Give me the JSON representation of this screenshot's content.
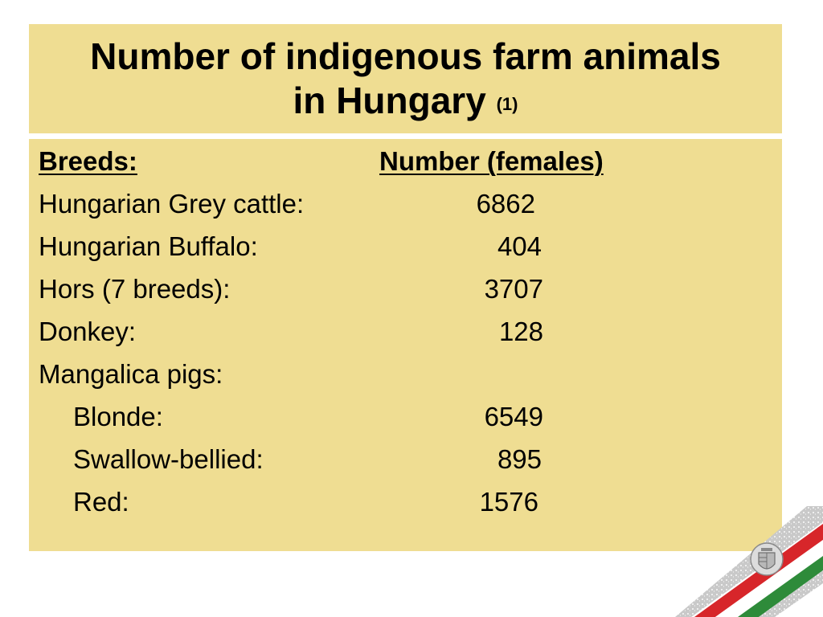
{
  "title": {
    "line1": "Number of indigenous farm animals",
    "line2": "in Hungary",
    "note": "(1)"
  },
  "table": {
    "header": {
      "breeds": "Breeds:",
      "number": "Number (females)"
    },
    "rows": [
      {
        "label": "Hungarian Grey cattle:",
        "value": "6862"
      },
      {
        "label": "Hungarian Buffalo:",
        "value": "404"
      },
      {
        "label": "Hors (7 breeds):",
        "value": "3707"
      },
      {
        "label": "Donkey:",
        "value": "128"
      },
      {
        "label": "Mangalica pigs:",
        "value": ""
      },
      {
        "label": "Blonde:",
        "value": "6549"
      },
      {
        "label": "Swallow-bellied:",
        "value": "895"
      },
      {
        "label": "Red:",
        "value": "1576"
      }
    ]
  },
  "colors": {
    "box_background": "#efdd92",
    "flag_red": "#d7262a",
    "flag_green": "#2e8b3a"
  },
  "decoration": {
    "icon": "hungarian-coat-of-arms-icon"
  }
}
